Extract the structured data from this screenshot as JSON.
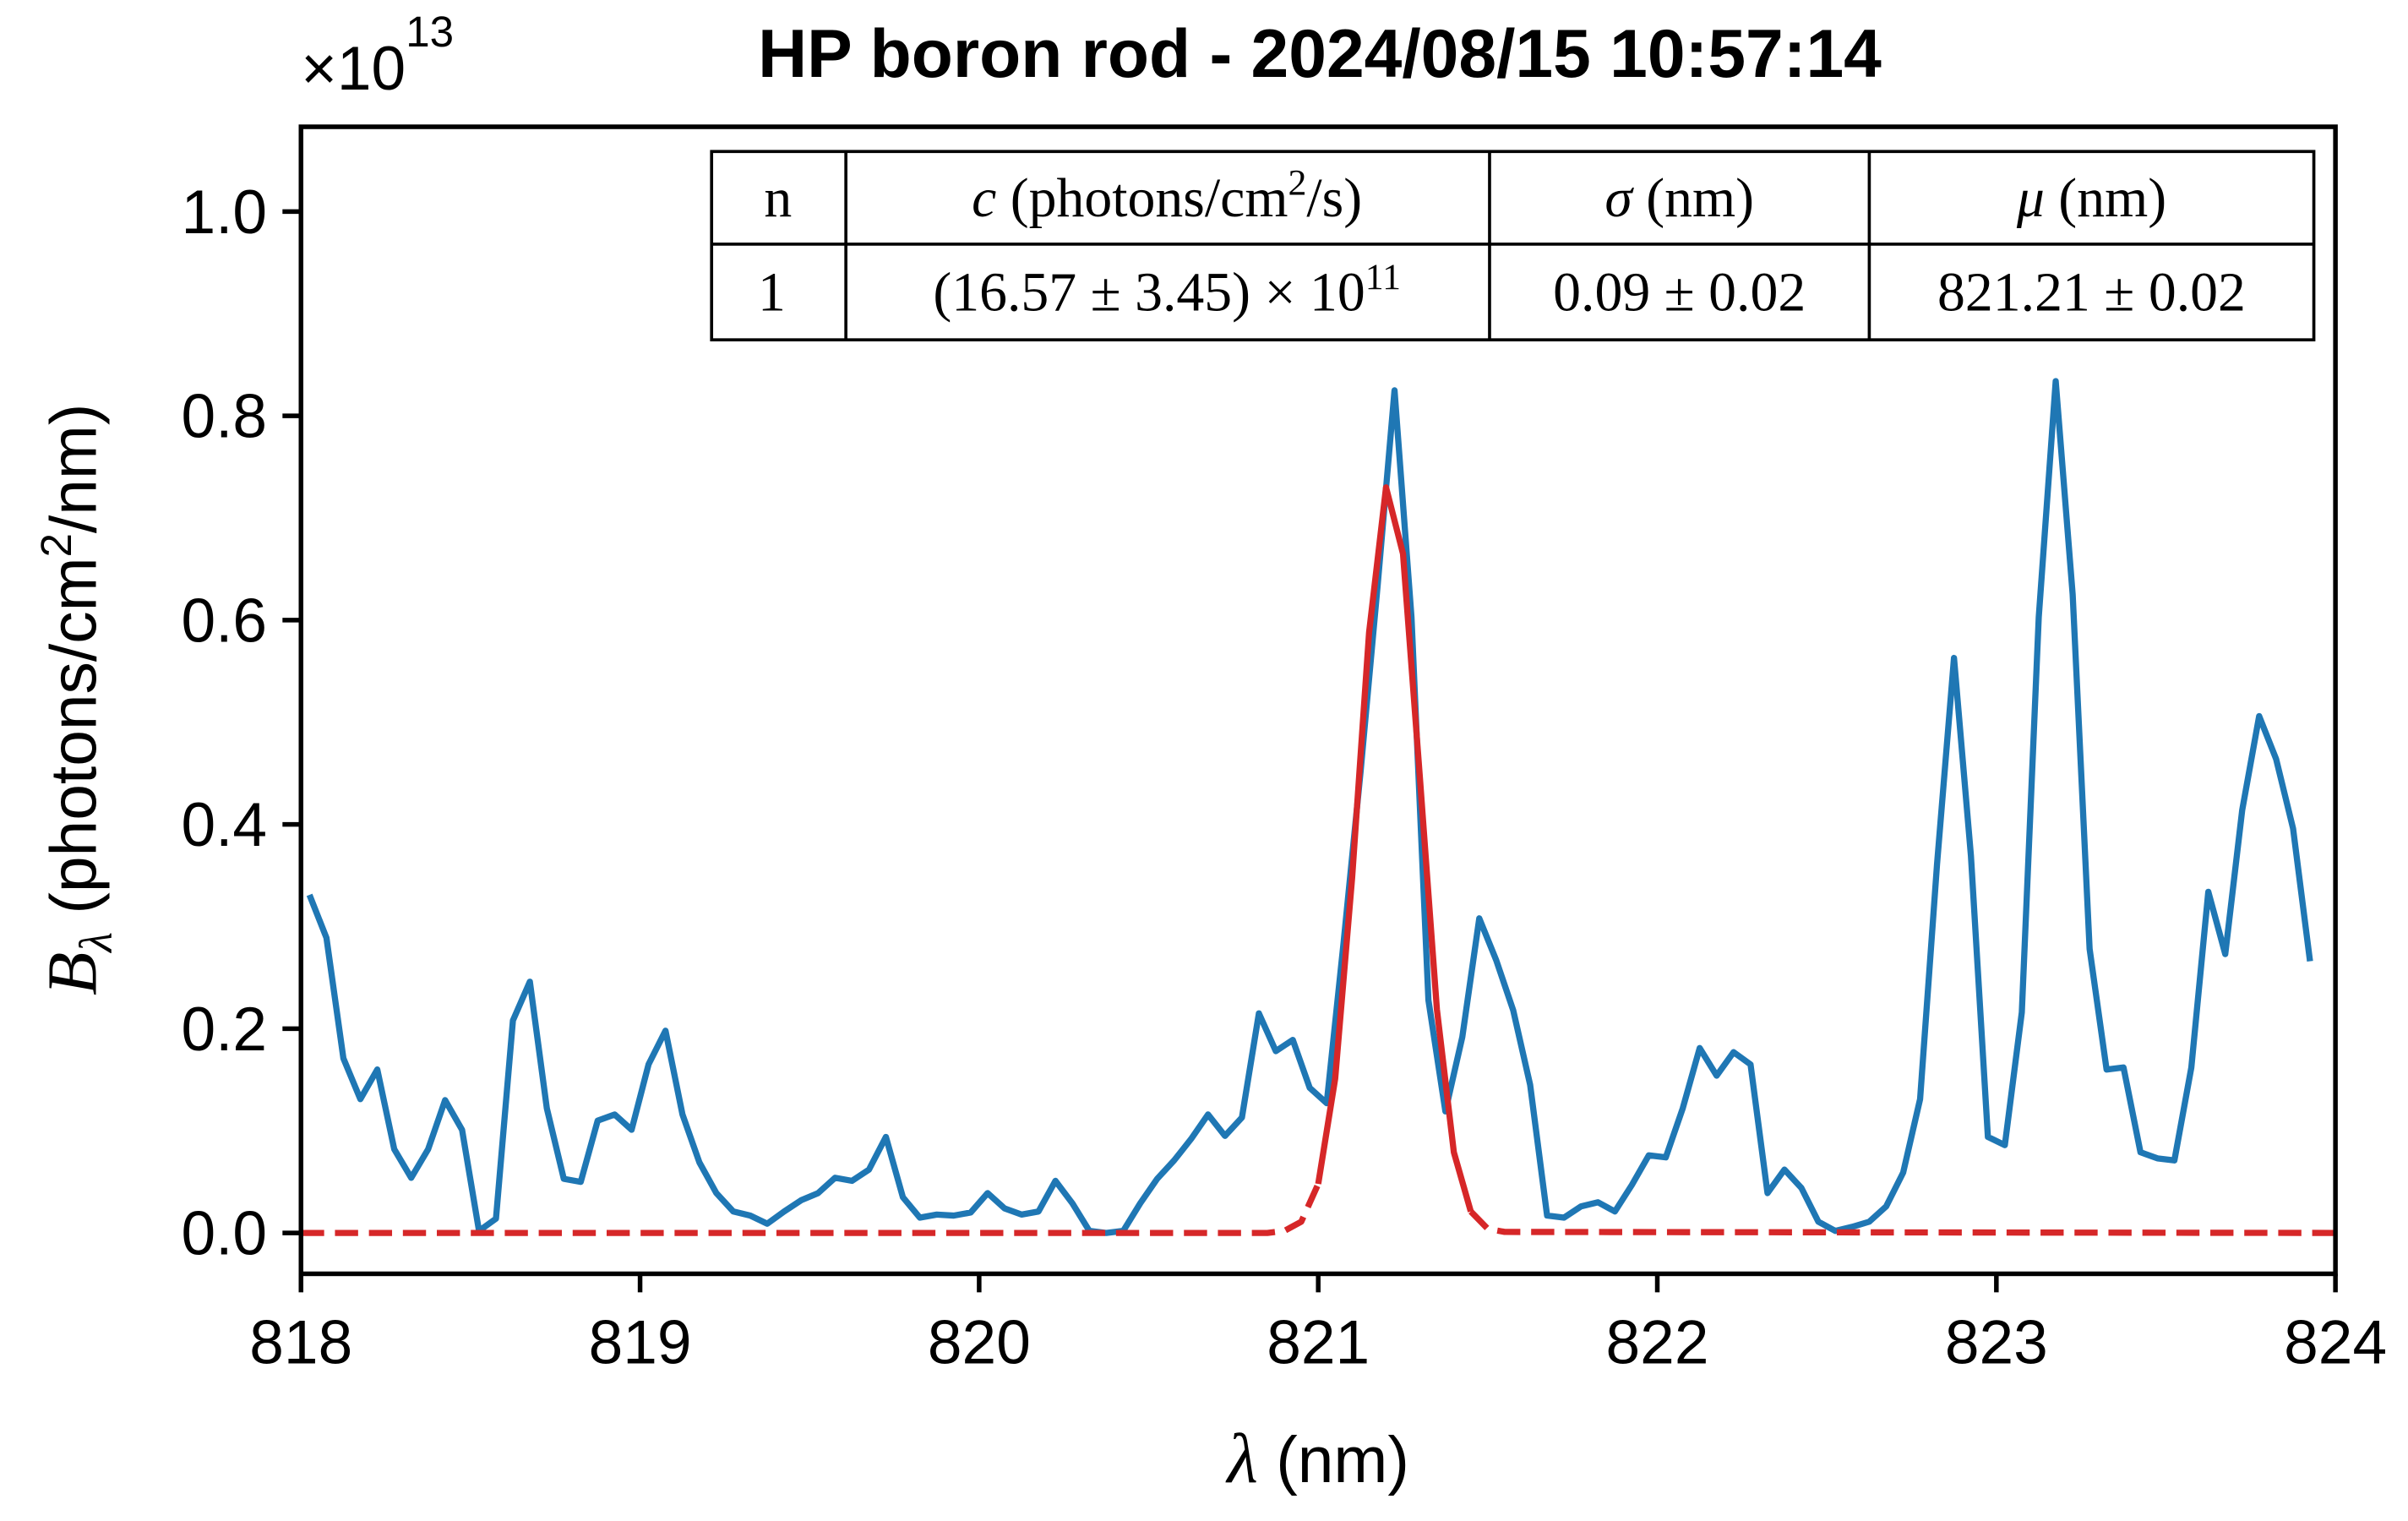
{
  "chart_data": {
    "type": "line",
    "title": "HP boron rod - 2024/08/15 10:57:14",
    "xlabel": [
      "λ",
      " (nm)"
    ],
    "ylabel": [
      "B",
      "λ",
      " (photons/cm",
      "2",
      "/nm)"
    ],
    "y_offset": [
      "×10",
      "13"
    ],
    "xlim": [
      818,
      824
    ],
    "ylim": [
      -0.04,
      1.083
    ],
    "xticks": [
      818,
      819,
      820,
      821,
      822,
      823,
      824
    ],
    "yticks": [
      {
        "value": 0,
        "label": "0.0"
      },
      0.2,
      0.4,
      0.6,
      0.8,
      {
        "value": 1,
        "label": "1.0"
      }
    ],
    "series": [
      {
        "color": "#1f77b4",
        "linestyle": "solid",
        "x": [
          818.025,
          818.075,
          818.125,
          818.175,
          818.225,
          818.275,
          818.325,
          818.375,
          818.425,
          818.475,
          818.525,
          818.575,
          818.625,
          818.675,
          818.725,
          818.775,
          818.825,
          818.875,
          818.925,
          818.975,
          819.025,
          819.075,
          819.125,
          819.175,
          819.225,
          819.275,
          819.325,
          819.375,
          819.425,
          819.475,
          819.525,
          819.575,
          819.625,
          819.675,
          819.725,
          819.775,
          819.825,
          819.875,
          819.925,
          819.975,
          820.025,
          820.075,
          820.125,
          820.175,
          820.225,
          820.275,
          820.325,
          820.375,
          820.425,
          820.475,
          820.525,
          820.575,
          820.625,
          820.675,
          820.725,
          820.775,
          820.825,
          820.875,
          820.925,
          820.975,
          821.025,
          821.075,
          821.125,
          821.175,
          821.225,
          821.275,
          821.325,
          821.375,
          821.425,
          821.475,
          821.525,
          821.575,
          821.625,
          821.675,
          821.725,
          821.775,
          821.825,
          821.875,
          821.925,
          821.975,
          822.025,
          822.075,
          822.125,
          822.175,
          822.225,
          822.275,
          822.325,
          822.375,
          822.425,
          822.475,
          822.525,
          822.575,
          822.625,
          822.675,
          822.725,
          822.775,
          822.825,
          822.875,
          822.925,
          822.975,
          823.025,
          823.075,
          823.125,
          823.175,
          823.225,
          823.275,
          823.325,
          823.375,
          823.425,
          823.475,
          823.525,
          823.575,
          823.625,
          823.675,
          823.725,
          823.775,
          823.825,
          823.875,
          823.925
        ],
        "values": [
          0.331,
          0.289,
          0.171,
          0.131,
          0.16,
          0.082,
          0.054,
          0.082,
          0.13,
          0.101,
          0.002,
          0.014,
          0.208,
          0.246,
          0.122,
          0.053,
          0.05,
          0.11,
          0.116,
          0.101,
          0.165,
          0.198,
          0.116,
          0.069,
          0.039,
          0.021,
          0.017,
          0.009,
          0.021,
          0.032,
          0.039,
          0.054,
          0.051,
          0.062,
          0.094,
          0.035,
          0.015,
          0.018,
          0.017,
          0.02,
          0.039,
          0.024,
          0.018,
          0.021,
          0.051,
          0.029,
          0.002,
          0,
          0.002,
          0.029,
          0.053,
          0.071,
          0.092,
          0.116,
          0.095,
          0.113,
          0.215,
          0.178,
          0.189,
          0.142,
          0.127,
          0.285,
          0.452,
          0.633,
          0.825,
          0.603,
          0.228,
          0.119,
          0.192,
          0.308,
          0.267,
          0.218,
          0.145,
          0.017,
          0.015,
          0.026,
          0.03,
          0.021,
          0.047,
          0.076,
          0.074,
          0.122,
          0.181,
          0.154,
          0.177,
          0.165,
          0.039,
          0.062,
          0.044,
          0.011,
          0.002,
          0.006,
          0.011,
          0.026,
          0.059,
          0.131,
          0.361,
          0.563,
          0.369,
          0.094,
          0.086,
          0.216,
          0.603,
          0.834,
          0.625,
          0.278,
          0.16,
          0.162,
          0.079,
          0.073,
          0.071,
          0.162,
          0.334,
          0.273,
          0.414,
          0.506,
          0.464,
          0.396,
          0.266
        ]
      },
      {
        "color": "#d62728",
        "linestyle": "dashed",
        "x": [
          818,
          820.85,
          820.9,
          820.95,
          821.0,
          821.2,
          821.45,
          821.5,
          821.55,
          824
        ],
        "values": [
          0,
          0,
          0.002,
          0.011,
          0.048,
          null,
          0.021,
          0.004,
          0.001,
          0
        ]
      },
      {
        "color": "#d62728",
        "linestyle": "solid",
        "x": [
          821.0,
          821.05,
          821.1,
          821.15,
          821.2,
          821.25,
          821.3,
          821.35,
          821.4,
          821.45
        ],
        "values": [
          0.048,
          0.151,
          0.348,
          0.588,
          0.73,
          0.665,
          0.445,
          0.219,
          0.079,
          0.021
        ]
      }
    ],
    "table": {
      "header": [
        "n",
        [
          "c",
          " (photons/cm",
          "2",
          "/s)"
        ],
        [
          "σ",
          " (nm)"
        ],
        [
          "μ",
          " (nm)"
        ]
      ],
      "row": [
        "1",
        [
          "(16.57 ± 3.45) × 10",
          "11"
        ],
        "0.09 ± 0.02",
        "821.21 ± 0.02"
      ]
    }
  }
}
